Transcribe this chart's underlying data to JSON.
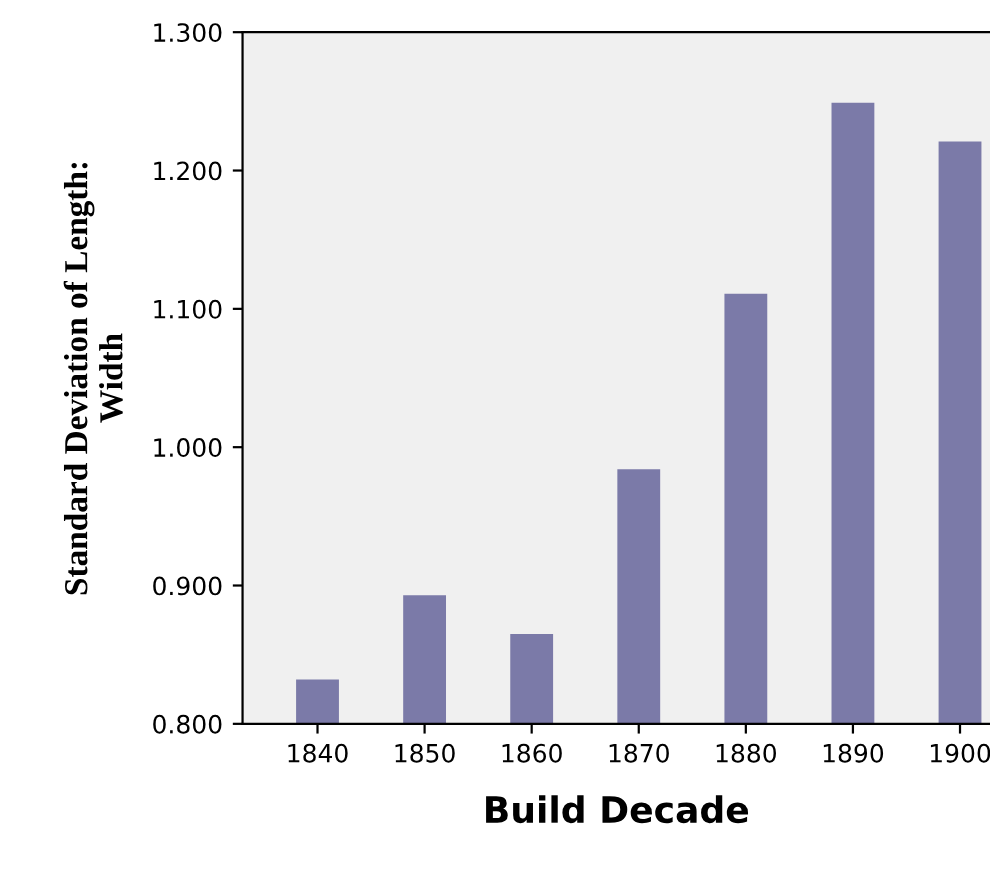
{
  "chart_data": {
    "type": "bar",
    "xlabel": "Build Decade",
    "ylabel": "Standard Deviation of Length:\nWidth",
    "categories": [
      "1840",
      "1850",
      "1860",
      "1870",
      "1880",
      "1890",
      "1900"
    ],
    "values": [
      0.832,
      0.893,
      0.865,
      0.984,
      1.111,
      1.249,
      1.221
    ],
    "color": "#7b7aa8",
    "ylim": [
      0.8,
      1.3
    ],
    "yticks": [
      {
        "value": 0.8,
        "label": "0.800"
      },
      {
        "value": 0.9,
        "label": "0.900"
      },
      {
        "value": 1.0,
        "label": "1.000"
      },
      {
        "value": 1.1,
        "label": "1.100"
      },
      {
        "value": 1.2,
        "label": "1.200"
      },
      {
        "value": 1.3,
        "label": "1.300"
      }
    ],
    "grid": false
  }
}
